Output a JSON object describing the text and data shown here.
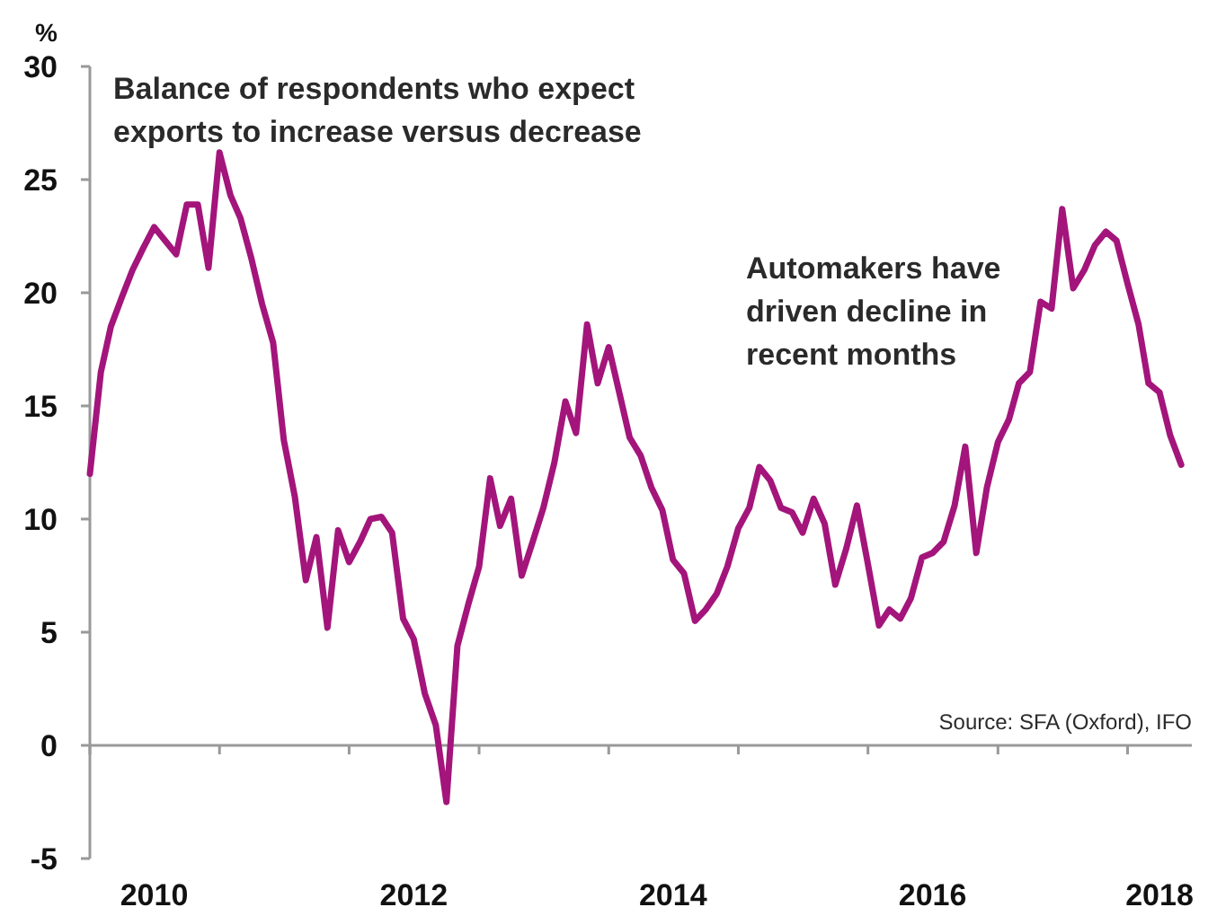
{
  "chart_data": {
    "type": "line",
    "ylabel": "%",
    "x": [
      "2010-01",
      "2010-02",
      "2010-03",
      "2010-04",
      "2010-05",
      "2010-06",
      "2010-07",
      "2010-08",
      "2010-09",
      "2010-10",
      "2010-11",
      "2010-12",
      "2011-01",
      "2011-02",
      "2011-03",
      "2011-04",
      "2011-05",
      "2011-06",
      "2011-07",
      "2011-08",
      "2011-09",
      "2011-10",
      "2011-11",
      "2011-12",
      "2012-01",
      "2012-02",
      "2012-03",
      "2012-04",
      "2012-05",
      "2012-06",
      "2012-07",
      "2012-08",
      "2012-09",
      "2012-10",
      "2012-11",
      "2012-12",
      "2013-01",
      "2013-02",
      "2013-03",
      "2013-04",
      "2013-05",
      "2013-06",
      "2013-07",
      "2013-08",
      "2013-09",
      "2013-10",
      "2013-11",
      "2013-12",
      "2014-01",
      "2014-02",
      "2014-03",
      "2014-04",
      "2014-05",
      "2014-06",
      "2014-07",
      "2014-08",
      "2014-09",
      "2014-10",
      "2014-11",
      "2014-12",
      "2015-01",
      "2015-02",
      "2015-03",
      "2015-04",
      "2015-05",
      "2015-06",
      "2015-07",
      "2015-08",
      "2015-09",
      "2015-10",
      "2015-11",
      "2015-12",
      "2016-01",
      "2016-02",
      "2016-03",
      "2016-04",
      "2016-05",
      "2016-06",
      "2016-07",
      "2016-08",
      "2016-09",
      "2016-10",
      "2016-11",
      "2016-12",
      "2017-01",
      "2017-02",
      "2017-03",
      "2017-04",
      "2017-05",
      "2017-06",
      "2017-07",
      "2017-08",
      "2017-09",
      "2017-10",
      "2017-11",
      "2017-12",
      "2018-01",
      "2018-02",
      "2018-03",
      "2018-04",
      "2018-05",
      "2018-06"
    ],
    "series": [
      {
        "color": "#a3157b",
        "values": [
          12.0,
          16.5,
          18.5,
          19.8,
          21.0,
          22.0,
          22.9,
          22.3,
          21.7,
          23.9,
          23.9,
          21.1,
          26.2,
          24.3,
          23.3,
          21.5,
          19.5,
          17.8,
          13.5,
          11.0,
          7.3,
          9.2,
          5.2,
          9.5,
          8.1,
          9.0,
          10.0,
          10.1,
          9.4,
          5.6,
          4.7,
          2.3,
          0.9,
          -2.5,
          4.4,
          6.2,
          7.9,
          11.8,
          9.7,
          10.9,
          7.5,
          9.0,
          10.5,
          12.5,
          15.2,
          13.8,
          18.6,
          16.0,
          17.6,
          15.5,
          13.6,
          12.8,
          11.4,
          10.4,
          8.2,
          7.6,
          5.5,
          6.0,
          6.7,
          7.9,
          9.6,
          10.5,
          12.3,
          11.7,
          10.5,
          10.3,
          9.4,
          10.9,
          9.8,
          7.1,
          8.7,
          10.6,
          8.0,
          5.3,
          6.0,
          5.6,
          6.5,
          8.3,
          8.5,
          9.0,
          10.6,
          13.2,
          8.5,
          11.4,
          13.4,
          14.4,
          16.0,
          16.5,
          19.6,
          19.3,
          23.7,
          20.2,
          21.0,
          22.1,
          22.7,
          22.3,
          20.4,
          18.6,
          16.0,
          15.6,
          13.7,
          12.4
        ]
      }
    ],
    "xlim": [
      "2010-01",
      "2018-07"
    ],
    "xticks": [
      {
        "value": "2010-01",
        "label": null
      },
      {
        "value": "2010-07",
        "label": "2010"
      },
      {
        "value": "2011-01",
        "label": null
      },
      {
        "value": "2012-01",
        "label": null
      },
      {
        "value": "2012-07",
        "label": "2012"
      },
      {
        "value": "2013-01",
        "label": null
      },
      {
        "value": "2014-01",
        "label": null
      },
      {
        "value": "2014-07",
        "label": "2014"
      },
      {
        "value": "2015-01",
        "label": null
      },
      {
        "value": "2016-01",
        "label": null
      },
      {
        "value": "2016-07",
        "label": "2016"
      },
      {
        "value": "2017-01",
        "label": null
      },
      {
        "value": "2018-01",
        "label": null
      },
      {
        "value": "2018-04",
        "label": "2018"
      }
    ],
    "ylim": [
      -5,
      30
    ],
    "yticks": [
      -5,
      0,
      5,
      10,
      15,
      20,
      25,
      30
    ],
    "marker": "none",
    "line_style": "solid",
    "annotations": [
      "Balance of respondents who expect exports to increase versus decrease",
      "Automakers have driven decline in recent months",
      "Source: SFA (Oxford), IFO"
    ]
  }
}
